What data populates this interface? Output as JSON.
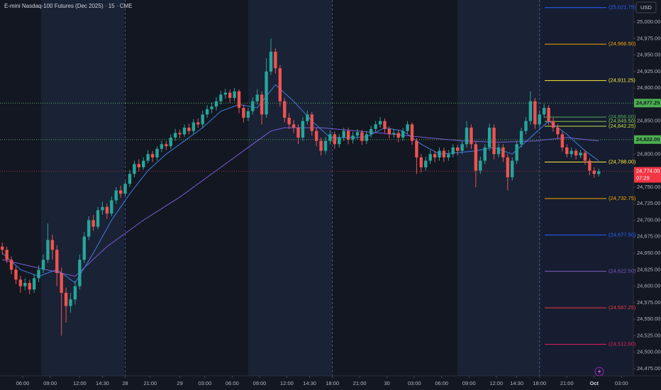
{
  "header": {
    "title": "E-mini Nasdaq-100 Futures (Dec 2025) · 15 · CME",
    "currency": "USD"
  },
  "chart_data": {
    "type": "candlestick",
    "xlim": [
      -0.5,
      138.6
    ],
    "ylim": [
      24464.3,
      25033.3
    ],
    "yticks": [
      {
        "value": 24475,
        "label": "24,475.00"
      },
      {
        "value": 24500,
        "label": "24,500.00"
      },
      {
        "value": 24525,
        "label": "24,525.00"
      },
      {
        "value": 24550,
        "label": "24,550.00"
      },
      {
        "value": 24575,
        "label": "24,575.00"
      },
      {
        "value": 24600,
        "label": "24,600.00"
      },
      {
        "value": 24625,
        "label": "24,625.00"
      },
      {
        "value": 24650,
        "label": "24,650.00"
      },
      {
        "value": 24675,
        "label": "24,675.00"
      },
      {
        "value": 24700,
        "label": "24,700.00"
      },
      {
        "value": 24725,
        "label": "24,725.00"
      },
      {
        "value": 24750,
        "label": "24,750.00"
      },
      {
        "value": 24775,
        "label": "24,775.00"
      },
      {
        "value": 24800,
        "label": "24,800.00"
      },
      {
        "value": 24825,
        "label": "24,825.00"
      },
      {
        "value": 24850,
        "label": "24,850.00"
      },
      {
        "value": 24875,
        "label": "24,875.00"
      },
      {
        "value": 24900,
        "label": "24,900.00"
      },
      {
        "value": 24925,
        "label": "24,925.00"
      },
      {
        "value": 24950,
        "label": "24,950.00"
      },
      {
        "value": 24975,
        "label": "24,975.00"
      },
      {
        "value": 25000,
        "label": "25,000.00"
      }
    ],
    "xticks": [
      {
        "value": 4.5,
        "label": "06:00"
      },
      {
        "value": 10.5,
        "label": "09:00"
      },
      {
        "value": 17,
        "label": "12:00"
      },
      {
        "value": 22,
        "label": "14:30"
      },
      {
        "value": 27,
        "label": "28"
      },
      {
        "value": 32.5,
        "label": "21:00"
      },
      {
        "value": 39,
        "label": "29"
      },
      {
        "value": 44.5,
        "label": "03:00"
      },
      {
        "value": 50.5,
        "label": "06:00"
      },
      {
        "value": 56.5,
        "label": "09:00"
      },
      {
        "value": 62.5,
        "label": "12:00"
      },
      {
        "value": 67.5,
        "label": "14:30"
      },
      {
        "value": 72.5,
        "label": "18:00"
      },
      {
        "value": 78.5,
        "label": "21:00"
      },
      {
        "value": 84.5,
        "label": "30"
      },
      {
        "value": 90.5,
        "label": "03:00"
      },
      {
        "value": 96.5,
        "label": "06:00"
      },
      {
        "value": 102.5,
        "label": "09:00"
      },
      {
        "value": 108.5,
        "label": "12:00"
      },
      {
        "value": 113,
        "label": "14:30"
      },
      {
        "value": 118,
        "label": "18:00"
      },
      {
        "value": 124,
        "label": "21:00"
      },
      {
        "value": 130,
        "label": "Oct"
      },
      {
        "value": 136,
        "label": "03:00"
      }
    ],
    "up_color": "#26a69a",
    "down_color": "#ef5350",
    "series": [
      {
        "open": [
          24660,
          24655,
          24640,
          24625,
          24610,
          24600,
          24605,
          24595,
          24612,
          24625,
          24640,
          24670,
          24655,
          24620,
          24590,
          24570,
          24580,
          24600,
          24640,
          24675,
          24700,
          24690,
          24715,
          24720,
          24710,
          24730,
          24745,
          24740,
          24755,
          24770,
          24785,
          24780,
          24790,
          24800,
          24795,
          24808,
          24815,
          24812,
          24825,
          24832,
          24830,
          24840,
          24835,
          24848,
          24845,
          24860,
          24868,
          24872,
          24880,
          24890,
          24893,
          24885,
          24895,
          24870,
          24855,
          24865,
          24880,
          24890,
          24860,
          24925,
          24955,
          24930,
          24880,
          24855,
          24845,
          24840,
          24825,
          24850,
          24860,
          24835,
          24820,
          24805,
          24820,
          24830,
          24815,
          24825,
          24835,
          24822,
          24828,
          24833,
          24820,
          24830,
          24838,
          24845,
          24850,
          24838,
          24830,
          24832,
          24825,
          24835,
          24845,
          24820,
          24795,
          24780,
          24790,
          24800,
          24795,
          24805,
          24795,
          24800,
          24810,
          24805,
          24815,
          24840,
          24815,
          24775,
          24790,
          24810,
          24840,
          24800,
          24810,
          24795,
          24765,
          24790,
          24815,
          24835,
          24850,
          24880,
          24845,
          24860,
          24870,
          24850,
          24840,
          24830,
          24810,
          24800,
          24805,
          24798,
          24802,
          24790,
          24775,
          24770
        ],
        "high": [
          24666,
          24660,
          24645,
          24630,
          24616,
          24612,
          24610,
          24618,
          24632,
          24648,
          24695,
          24678,
          24662,
          24628,
          24598,
          24590,
          24608,
          24648,
          24682,
          24706,
          24708,
          24720,
          24728,
          24725,
          24736,
          24750,
          24752,
          24760,
          24776,
          24790,
          24792,
          24795,
          24806,
          24805,
          24812,
          24820,
          24820,
          24830,
          24838,
          24837,
          24845,
          24846,
          24853,
          24854,
          24866,
          24874,
          24878,
          24886,
          24896,
          24899,
          24898,
          24900,
          24898,
          24875,
          24870,
          24886,
          24898,
          24895,
          24945,
          24975,
          24960,
          24935,
          24885,
          24862,
          24852,
          24845,
          24856,
          24866,
          24864,
          24840,
          24825,
          24826,
          24836,
          24834,
          24830,
          24840,
          24840,
          24834,
          24838,
          24837,
          24835,
          24843,
          24850,
          24856,
          24854,
          24842,
          24838,
          24836,
          24840,
          24850,
          24848,
          24824,
          24800,
          24796,
          24806,
          24805,
          24810,
          24810,
          24806,
          24815,
          24814,
          24820,
          24850,
          24845,
          24820,
          24796,
          24815,
          24846,
          24845,
          24816,
          24815,
          24800,
          24795,
          24820,
          24840,
          24856,
          24895,
          24885,
          24866,
          24876,
          24874,
          24855,
          24845,
          24834,
          24815,
          24810,
          24808,
          24806,
          24806,
          24794,
          24780,
          24778
        ],
        "low": [
          24648,
          24635,
          24618,
          24603,
          24590,
          24594,
          24588,
          24590,
          24606,
          24620,
          24635,
          24640,
          24600,
          24525,
          24545,
          24560,
          24572,
          24595,
          24635,
          24670,
          24684,
          24686,
          24708,
          24702,
          24706,
          24725,
          24734,
          24736,
          24750,
          24765,
          24774,
          24776,
          24786,
          24788,
          24790,
          24803,
          24806,
          24808,
          24820,
          24824,
          24826,
          24830,
          24830,
          24840,
          24840,
          24855,
          24862,
          24866,
          24875,
          24884,
          24878,
          24880,
          24862,
          24848,
          24850,
          24860,
          24875,
          24845,
          24855,
          24920,
          24922,
          24872,
          24848,
          24838,
          24832,
          24815,
          24820,
          24845,
          24828,
          24812,
          24798,
          24800,
          24815,
          24808,
          24810,
          24820,
          24815,
          24816,
          24822,
          24814,
          24815,
          24825,
          24833,
          24840,
          24832,
          24824,
          24825,
          24818,
          24820,
          24830,
          24814,
          24770,
          24772,
          24775,
          24785,
          24788,
          24790,
          24788,
          24790,
          24795,
          24798,
          24800,
          24810,
          24808,
          24750,
          24770,
          24785,
          24805,
          24792,
          24795,
          24788,
          24745,
          24760,
          24785,
          24810,
          24830,
          24845,
          24838,
          24840,
          24855,
          24844,
          24834,
          24824,
          24804,
          24795,
          24795,
          24792,
          24794,
          24784,
          24768,
          24764,
          24766
        ],
        "close": [
          24655,
          24640,
          24625,
          24610,
          24600,
          24605,
          24595,
          24612,
          24625,
          24640,
          24670,
          24655,
          24620,
          24590,
          24570,
          24580,
          24600,
          24640,
          24675,
          24700,
          24690,
          24715,
          24720,
          24710,
          24730,
          24745,
          24740,
          24755,
          24770,
          24785,
          24780,
          24790,
          24800,
          24795,
          24808,
          24815,
          24812,
          24825,
          24832,
          24830,
          24840,
          24835,
          24848,
          24845,
          24860,
          24868,
          24872,
          24880,
          24890,
          24893,
          24885,
          24895,
          24870,
          24855,
          24865,
          24880,
          24890,
          24860,
          24925,
          24955,
          24930,
          24880,
          24855,
          24845,
          24840,
          24825,
          24850,
          24860,
          24835,
          24820,
          24805,
          24820,
          24830,
          24815,
          24825,
          24835,
          24822,
          24828,
          24833,
          24820,
          24830,
          24838,
          24845,
          24850,
          24838,
          24830,
          24832,
          24825,
          24835,
          24845,
          24820,
          24795,
          24780,
          24790,
          24800,
          24795,
          24805,
          24795,
          24800,
          24810,
          24805,
          24815,
          24840,
          24815,
          24775,
          24790,
          24810,
          24840,
          24800,
          24810,
          24795,
          24765,
          24790,
          24815,
          24835,
          24850,
          24880,
          24845,
          24860,
          24870,
          24850,
          24840,
          24830,
          24810,
          24800,
          24805,
          24798,
          24802,
          24790,
          24775,
          24770,
          24774
        ]
      }
    ],
    "moving_averages": [
      {
        "color": "#7b5cd6",
        "x": [
          0,
          16,
          23,
          31,
          39,
          47,
          55,
          59,
          62,
          70,
          78,
          86,
          93,
          101,
          109,
          117,
          124,
          131
        ],
        "values": [
          24640,
          24615,
          24660,
          24700,
          24735,
          24775,
          24815,
          24835,
          24840,
          24840,
          24835,
          24830,
          24825,
          24820,
          24818,
          24820,
          24825,
          24820
        ]
      },
      {
        "color": "#3f7fe0",
        "x": [
          0,
          4,
          8,
          12,
          16,
          20,
          24,
          28,
          32,
          36,
          40,
          44,
          48,
          52,
          56,
          60,
          64,
          68,
          72,
          76,
          80,
          84,
          88,
          92,
          96,
          100,
          104,
          108,
          112,
          116,
          120,
          124,
          128,
          131
        ],
        "values": [
          24650,
          24625,
          24615,
          24625,
          24605,
          24650,
          24700,
          24740,
          24775,
          24800,
          24820,
          24840,
          24865,
          24875,
          24870,
          24905,
          24880,
          24850,
          24825,
          24825,
          24826,
          24840,
          24835,
          24815,
          24800,
          24802,
          24805,
          24810,
          24800,
          24825,
          24850,
          24830,
          24805,
          24790
        ]
      }
    ],
    "levels": [
      {
        "value": 25021.75,
        "label": "(25,021.75)",
        "color": "#2962ff"
      },
      {
        "value": 24966.5,
        "label": "(24,966.50)",
        "color": "#f7a600"
      },
      {
        "value": 24911.25,
        "label": "(24,911.25)",
        "color": "#ffeb3b"
      },
      {
        "value": 24856,
        "label": "(24,856.00)",
        "color": "#4caf50"
      },
      {
        "value": 24849.5,
        "label": "(24,849.50)",
        "color": "#8bc34a"
      },
      {
        "value": 24842.25,
        "label": "(24,842.25)",
        "color": "#cddc39"
      },
      {
        "value": 24788,
        "label": "(24,788.00)",
        "color": "#ffeb3b"
      },
      {
        "value": 24732.75,
        "label": "(24,732.75)",
        "color": "#f7a600"
      },
      {
        "value": 24677.5,
        "label": "(24,677.50)",
        "color": "#2962ff"
      },
      {
        "value": 24622.5,
        "label": "(24,622.50)",
        "color": "#7e57c2"
      },
      {
        "value": 24567.25,
        "label": "(24,567.25)",
        "color": "#f23645"
      },
      {
        "value": 24512,
        "label": "(24,512.00)",
        "color": "#e91e63"
      }
    ],
    "price_lines": [
      {
        "value": 24877.25,
        "label": "24,877.25",
        "color": "#4caf50"
      },
      {
        "value": 24822,
        "label": "24,822.00",
        "color": "#4caf50"
      }
    ],
    "last_price": {
      "value": 24774,
      "label": "24,774.00",
      "countdown": "07:29",
      "color": "#f23645"
    }
  }
}
